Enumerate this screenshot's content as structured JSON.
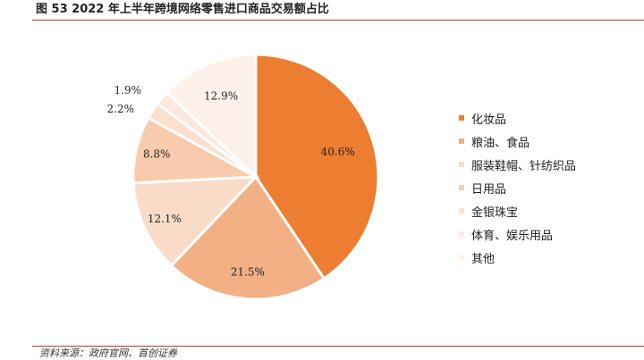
{
  "figure": {
    "title": "图  53 2022 年上半年跨境网络零售进口商品交易额占比",
    "source": "资料来源：政府官网、首创证券"
  },
  "colors": {
    "accent_rule": "#c0392b",
    "slice_stroke": "#ffffff"
  },
  "chart_data": {
    "type": "pie",
    "start_angle_deg": 0,
    "direction": "clockwise",
    "slices": [
      {
        "label": "化妆品",
        "value": 40.6,
        "value_label": "40.6%",
        "color": "#ED7D31"
      },
      {
        "label": "粮油、食品",
        "value": 21.5,
        "value_label": "21.5%",
        "color": "#F2B084"
      },
      {
        "label": "服装鞋帽、针纺织品",
        "value": 12.1,
        "value_label": "12.1%",
        "color": "#FADBC8"
      },
      {
        "label": "日用品",
        "value": 8.8,
        "value_label": "8.8%",
        "color": "#F8CBAD"
      },
      {
        "label": "金银珠宝",
        "value": 2.2,
        "value_label": "2.2%",
        "color": "#FBE0CE"
      },
      {
        "label": "体育、娱乐用品",
        "value": 1.9,
        "value_label": "1.9%",
        "color": "#FCE8DC"
      },
      {
        "label": "其他",
        "value": 12.9,
        "value_label": "12.9%",
        "color": "#FDF1EA"
      }
    ],
    "legend_position": "right"
  }
}
